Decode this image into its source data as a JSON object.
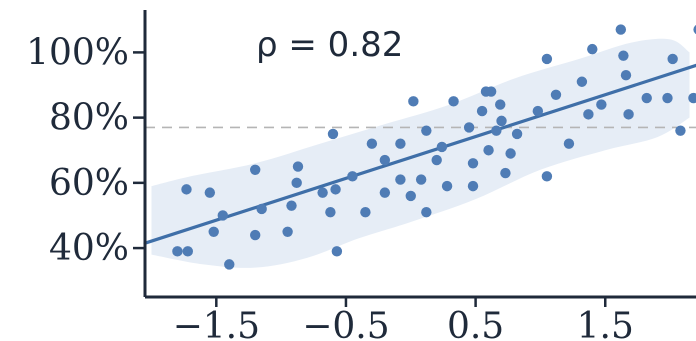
{
  "chart_data": {
    "type": "scatter",
    "title": "",
    "xlabel": "",
    "ylabel": "",
    "annotation": "ρ = 0.82",
    "xlim": [
      -2.05,
      2.2
    ],
    "ylim": [
      25,
      113
    ],
    "x_ticks": [
      -1.5,
      -0.5,
      0.5,
      1.5
    ],
    "x_tick_labels": [
      "−1.5",
      "−0.5",
      "0.5",
      "1.5"
    ],
    "y_ticks": [
      40,
      60,
      80,
      100
    ],
    "y_tick_labels": [
      "40%",
      "60%",
      "80%",
      "100%"
    ],
    "reference_line": {
      "y": 77,
      "style": "dashed"
    },
    "trend_line": {
      "x": [
        -2.05,
        2.2
      ],
      "y": [
        41.5,
        96
      ]
    },
    "band": {
      "upper": [
        [
          -2.0,
          59
        ],
        [
          -1.7,
          62
        ],
        [
          -1.2,
          66
        ],
        [
          -0.7,
          72
        ],
        [
          -0.2,
          78
        ],
        [
          0.3,
          84
        ],
        [
          0.8,
          92
        ],
        [
          1.3,
          98
        ],
        [
          1.7,
          103
        ],
        [
          2.0,
          104
        ],
        [
          2.15,
          100
        ]
      ],
      "lower": [
        [
          -2.0,
          38
        ],
        [
          -1.6,
          35
        ],
        [
          -1.2,
          34
        ],
        [
          -0.8,
          37
        ],
        [
          -0.4,
          43
        ],
        [
          0.0,
          48
        ],
        [
          0.5,
          55
        ],
        [
          1.0,
          64
        ],
        [
          1.5,
          70
        ],
        [
          1.9,
          74
        ],
        [
          2.15,
          80
        ]
      ]
    },
    "grid": false,
    "legend": "none",
    "colors": {
      "points": "#4f7cb5",
      "trend_line": "#3f6fa8",
      "band": "#e6edf6",
      "axis": "#1f2a3a",
      "reference_line": "#b5b5b5",
      "text": "#1f2a3a"
    },
    "series": [
      {
        "values": [
          [
            -1.8,
            39
          ],
          [
            -1.72,
            39
          ],
          [
            -1.73,
            58
          ],
          [
            -1.55,
            57
          ],
          [
            -1.52,
            45
          ],
          [
            -1.45,
            50
          ],
          [
            -1.4,
            35
          ],
          [
            -1.2,
            64
          ],
          [
            -1.15,
            52
          ],
          [
            -1.2,
            44
          ],
          [
            -0.95,
            45
          ],
          [
            -0.92,
            53
          ],
          [
            -0.88,
            60
          ],
          [
            -0.87,
            65
          ],
          [
            -0.68,
            57
          ],
          [
            -0.62,
            51
          ],
          [
            -0.58,
            58
          ],
          [
            -0.6,
            75
          ],
          [
            -0.57,
            39
          ],
          [
            -0.45,
            62
          ],
          [
            -0.35,
            51
          ],
          [
            -0.3,
            72
          ],
          [
            -0.2,
            67
          ],
          [
            -0.2,
            57
          ],
          [
            -0.08,
            72
          ],
          [
            -0.08,
            61
          ],
          [
            0.0,
            56
          ],
          [
            0.02,
            85
          ],
          [
            0.08,
            61
          ],
          [
            0.12,
            51
          ],
          [
            0.12,
            76
          ],
          [
            0.2,
            67
          ],
          [
            0.24,
            71
          ],
          [
            0.28,
            59
          ],
          [
            0.33,
            85
          ],
          [
            0.48,
            66
          ],
          [
            0.45,
            77
          ],
          [
            0.48,
            59
          ],
          [
            0.55,
            82
          ],
          [
            0.58,
            88
          ],
          [
            0.6,
            70
          ],
          [
            0.62,
            88
          ],
          [
            0.66,
            76
          ],
          [
            0.69,
            84
          ],
          [
            0.7,
            79
          ],
          [
            0.73,
            63
          ],
          [
            0.77,
            69
          ],
          [
            0.82,
            75
          ],
          [
            0.98,
            82
          ],
          [
            1.05,
            98
          ],
          [
            1.05,
            62
          ],
          [
            1.12,
            87
          ],
          [
            1.22,
            72
          ],
          [
            1.32,
            91
          ],
          [
            1.37,
            81
          ],
          [
            1.4,
            101
          ],
          [
            1.47,
            84
          ],
          [
            1.62,
            107
          ],
          [
            1.64,
            99
          ],
          [
            1.66,
            93
          ],
          [
            1.68,
            81
          ],
          [
            1.82,
            86
          ],
          [
            1.98,
            86
          ],
          [
            2.02,
            98
          ],
          [
            2.08,
            76
          ],
          [
            2.18,
            86
          ],
          [
            2.22,
            107
          ]
        ]
      }
    ]
  }
}
